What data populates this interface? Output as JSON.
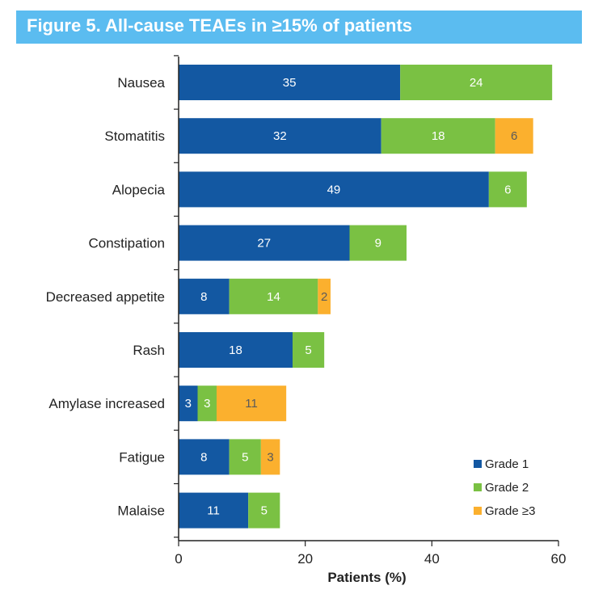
{
  "title": "Figure 5. All-cause TEAEs in ≥15% of patients",
  "chart_data": {
    "type": "bar",
    "orientation": "horizontal",
    "stacked": true,
    "title": "Figure 5. All-cause TEAEs in ≥15% of patients",
    "xlabel": "Patients (%)",
    "ylabel": "",
    "xlim": [
      0,
      60
    ],
    "xticks": [
      0,
      20,
      40,
      60
    ],
    "grid": false,
    "legend_position": "bottom-right",
    "categories": [
      "Nausea",
      "Stomatitis",
      "Alopecia",
      "Constipation",
      "Decreased appetite",
      "Rash",
      "Amylase increased",
      "Fatigue",
      "Malaise"
    ],
    "series": [
      {
        "name": "Grade 1",
        "color": "#1358a2",
        "label_color": "#ffffff",
        "values": [
          35,
          32,
          49,
          27,
          8,
          18,
          3,
          8,
          11
        ]
      },
      {
        "name": "Grade 2",
        "color": "#7ac143",
        "label_color": "#ffffff",
        "values": [
          24,
          18,
          6,
          9,
          14,
          5,
          3,
          5,
          5
        ]
      },
      {
        "name": "Grade ≥3",
        "color": "#fbb02e",
        "label_color": "#5a5a5a",
        "values": [
          0,
          6,
          0,
          0,
          2,
          0,
          11,
          3,
          0
        ]
      }
    ]
  }
}
